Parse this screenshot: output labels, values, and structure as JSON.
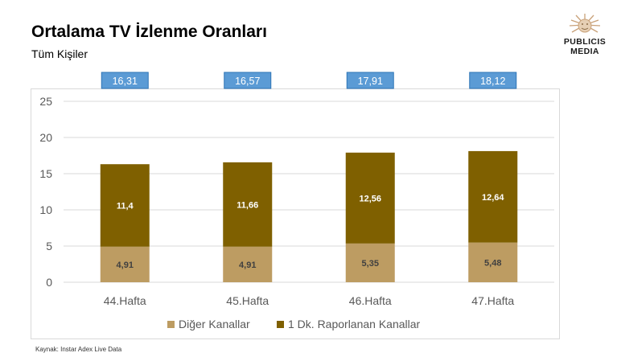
{
  "header": {
    "title": "Ortalama TV İzlenme Oranları",
    "subtitle": "Tüm Kişiler"
  },
  "logo": {
    "line1": "PUBLICIS",
    "line2": "MEDIA",
    "icon": "lion-sun-icon"
  },
  "footer": {
    "source": "Kaynak: Instar  Adex Live Data"
  },
  "colors": {
    "bottom_series": "#bd9c62",
    "top_series": "#7f6000",
    "total_box": "#5b9bd5",
    "total_box_border": "#2e75b6",
    "grid": "#d9d9d9"
  },
  "chart_data": {
    "type": "bar",
    "stacked": true,
    "categories": [
      "44.Hafta",
      "45.Hafta",
      "46.Hafta",
      "47.Hafta"
    ],
    "series": [
      {
        "name": "Diğer Kanallar",
        "values": [
          4.91,
          4.91,
          5.35,
          5.48
        ],
        "labels": [
          "4,91",
          "4,91",
          "5,35",
          "5,48"
        ]
      },
      {
        "name": "1 Dk. Raporlanan Kanallar",
        "values": [
          11.4,
          11.66,
          12.56,
          12.64
        ],
        "labels": [
          "11,4",
          "11,66",
          "12,56",
          "12,64"
        ]
      }
    ],
    "totals": [
      "16,31",
      "16,57",
      "17,91",
      "18,12"
    ],
    "y_ticks": [
      "0",
      "5",
      "10",
      "15",
      "20",
      "25"
    ],
    "ylim": [
      0,
      25
    ],
    "grid": true,
    "legend_position": "bottom"
  }
}
